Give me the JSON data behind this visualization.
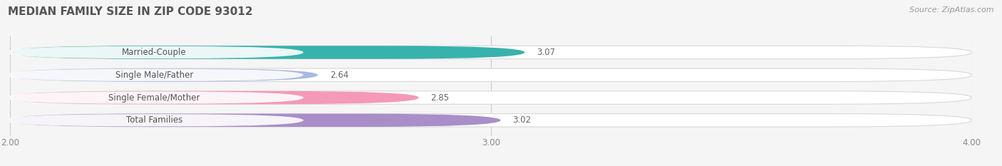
{
  "title": "MEDIAN FAMILY SIZE IN ZIP CODE 93012",
  "source": "Source: ZipAtlas.com",
  "categories": [
    "Married-Couple",
    "Single Male/Father",
    "Single Female/Mother",
    "Total Families"
  ],
  "values": [
    3.07,
    2.64,
    2.85,
    3.02
  ],
  "colors": [
    "#38b2ac",
    "#a8b8e0",
    "#f499b8",
    "#a98ec8"
  ],
  "xlim": [
    2.0,
    4.0
  ],
  "xticks": [
    2.0,
    3.0,
    4.0
  ],
  "xtick_labels": [
    "2.00",
    "3.00",
    "4.00"
  ],
  "bar_height": 0.58,
  "background_color": "#f5f5f5",
  "bar_bg_color": "#ebebeb",
  "title_fontsize": 11,
  "label_fontsize": 8.5,
  "value_fontsize": 8.5,
  "source_fontsize": 8.0,
  "bar_gap": 0.42
}
